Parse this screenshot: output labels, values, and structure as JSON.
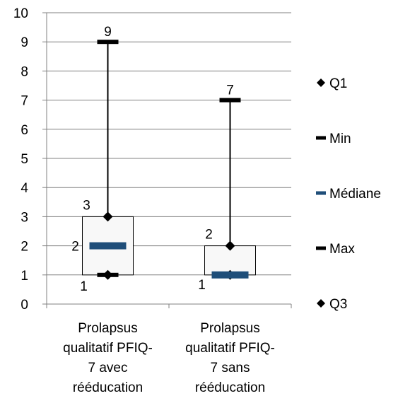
{
  "chart_data": {
    "type": "box",
    "title": "",
    "xlabel": "",
    "ylabel": "",
    "ylim": [
      0,
      10
    ],
    "y_ticks": [
      0,
      1,
      2,
      3,
      4,
      5,
      6,
      7,
      8,
      9,
      10
    ],
    "grid": true,
    "legend_position": "right",
    "categories": [
      [
        "Prolapsus",
        "qualitatif PFIQ-",
        "7 avec",
        "rééducation"
      ],
      [
        "Prolapsus",
        "qualitatif PFIQ-",
        "7 sans",
        "rééducation"
      ]
    ],
    "series": [
      {
        "name": "Q1",
        "values": [
          1,
          1
        ]
      },
      {
        "name": "Min",
        "values": [
          1,
          1
        ]
      },
      {
        "name": "Médiane",
        "values": [
          2,
          1
        ]
      },
      {
        "name": "Max",
        "values": [
          9,
          7
        ]
      },
      {
        "name": "Q3",
        "values": [
          3,
          2
        ]
      }
    ],
    "data_labels": [
      {
        "category": 0,
        "texts": [
          "9",
          "3",
          "2",
          "1"
        ]
      },
      {
        "category": 1,
        "texts": [
          "7",
          "2",
          "1"
        ]
      }
    ],
    "legend": [
      {
        "label": "Q1",
        "marker": "diamond",
        "color": "#000000"
      },
      {
        "label": "Min",
        "marker": "dash",
        "color": "#000000"
      },
      {
        "label": "Médiane",
        "marker": "dash",
        "color": "#1F4E79"
      },
      {
        "label": "Max",
        "marker": "dash",
        "color": "#000000"
      },
      {
        "label": "Q3",
        "marker": "diamond",
        "color": "#000000"
      }
    ],
    "colors": {
      "median": "#1F4E79",
      "box_fill": "#F8F8F8",
      "axis": "#808080",
      "grid": "#808080",
      "marker": "#000000"
    }
  }
}
